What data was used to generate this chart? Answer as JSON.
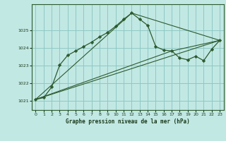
{
  "xlabel": "Graphe pression niveau de la mer (hPa)",
  "background_color": "#c2e8e4",
  "grid_color": "#8fc8c4",
  "line_color": "#2d5a2d",
  "ylim": [
    1020.5,
    1026.5
  ],
  "xlim": [
    -0.5,
    23.5
  ],
  "yticks": [
    1021,
    1022,
    1023,
    1024,
    1025
  ],
  "xticks": [
    0,
    1,
    2,
    3,
    4,
    5,
    6,
    7,
    8,
    9,
    10,
    11,
    12,
    13,
    14,
    15,
    16,
    17,
    18,
    19,
    20,
    21,
    22,
    23
  ],
  "series1_x": [
    0,
    1,
    2,
    3,
    4,
    5,
    6,
    7,
    8,
    9,
    10,
    11,
    12,
    13,
    14,
    15,
    16,
    17,
    18,
    19,
    20,
    21,
    22,
    23
  ],
  "series1_y": [
    1021.1,
    1021.2,
    1021.8,
    1023.05,
    1023.6,
    1023.85,
    1024.1,
    1024.35,
    1024.65,
    1024.9,
    1025.25,
    1025.65,
    1026.0,
    1025.65,
    1025.3,
    1024.1,
    1023.9,
    1023.85,
    1023.45,
    1023.35,
    1023.55,
    1023.3,
    1023.95,
    1024.45
  ],
  "series2_x": [
    0,
    23
  ],
  "series2_y": [
    1021.1,
    1024.45
  ],
  "series3_x": [
    0,
    12,
    23
  ],
  "series3_y": [
    1021.1,
    1026.0,
    1024.45
  ],
  "series4_x": [
    0,
    17,
    23
  ],
  "series4_y": [
    1021.1,
    1023.85,
    1024.45
  ]
}
